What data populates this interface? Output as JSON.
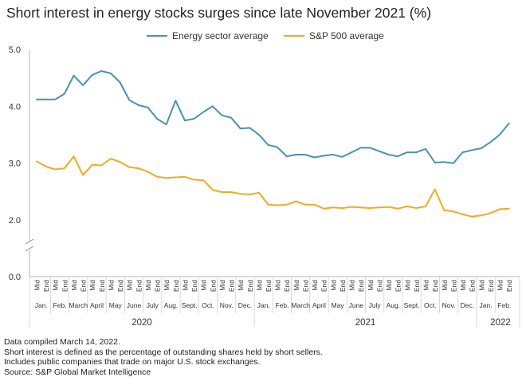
{
  "chart_data": {
    "type": "line",
    "title": "Short interest in energy stocks surges since late November 2021 (%)",
    "ylim": [
      0,
      5
    ],
    "yticks": [
      "0.0",
      "2.0",
      "3.0",
      "4.0",
      "5.0"
    ],
    "axis_break": true,
    "grid": false,
    "legend_position": "top-center",
    "x_labels": [
      "Mid",
      "End",
      "Mid",
      "End",
      "Mid",
      "End",
      "Mid",
      "End",
      "Mid",
      "End",
      "Mid",
      "End",
      "Mid",
      "End",
      "Mid",
      "End",
      "Mid",
      "End",
      "Mid",
      "End",
      "Mid",
      "End",
      "Mid",
      "End",
      "Mid",
      "End",
      "Mid",
      "End",
      "Mid",
      "End",
      "Mid",
      "End",
      "Mid",
      "End",
      "Mid",
      "End",
      "Mid",
      "End",
      "Mid",
      "End",
      "Mid",
      "End",
      "Mid",
      "End",
      "Mid",
      "End",
      "Mid",
      "End",
      "Mid",
      "End",
      "Mid",
      "End"
    ],
    "months": [
      "Jan.",
      "Feb.",
      "March",
      "April",
      "May",
      "June",
      "July",
      "Aug.",
      "Sept.",
      "Oct.",
      "Nov.",
      "Dec.",
      "Jan.",
      "Feb.",
      "March",
      "April",
      "May",
      "June",
      "July",
      "Aug.",
      "Sept.",
      "Oct.",
      "Nov.",
      "Dec.",
      "Jan.",
      "Feb."
    ],
    "years": [
      {
        "label": "2020",
        "start": 0,
        "end": 11
      },
      {
        "label": "2021",
        "start": 12,
        "end": 23
      },
      {
        "label": "2022",
        "start": 24,
        "end": 25
      }
    ],
    "series": [
      {
        "name": "Energy sector average",
        "color": "#4a90b4",
        "values": [
          4.12,
          4.12,
          4.12,
          4.22,
          4.54,
          4.37,
          4.55,
          4.62,
          4.58,
          4.42,
          4.11,
          4.02,
          3.98,
          3.78,
          3.68,
          4.1,
          3.75,
          3.78,
          3.9,
          4.0,
          3.84,
          3.8,
          3.61,
          3.62,
          3.5,
          3.32,
          3.28,
          3.12,
          3.15,
          3.15,
          3.1,
          3.13,
          3.15,
          3.11,
          3.19,
          3.27,
          3.27,
          3.21,
          3.15,
          3.12,
          3.19,
          3.19,
          3.25,
          3.01,
          3.02,
          3.0,
          3.19,
          3.23,
          3.26,
          3.37,
          3.5,
          3.7
        ]
      },
      {
        "name": "S&P 500 average",
        "color": "#f2a924",
        "values": [
          3.03,
          2.94,
          2.89,
          2.91,
          3.12,
          2.79,
          2.97,
          2.96,
          3.08,
          3.02,
          2.93,
          2.91,
          2.85,
          2.76,
          2.74,
          2.75,
          2.76,
          2.71,
          2.7,
          2.53,
          2.49,
          2.49,
          2.46,
          2.45,
          2.48,
          2.27,
          2.26,
          2.27,
          2.33,
          2.27,
          2.27,
          2.2,
          2.22,
          2.21,
          2.23,
          2.22,
          2.21,
          2.22,
          2.23,
          2.2,
          2.24,
          2.21,
          2.24,
          2.54,
          2.17,
          2.15,
          2.1,
          2.06,
          2.08,
          2.12,
          2.19,
          2.2
        ]
      }
    ]
  },
  "footnotes": [
    "Data compiled March 14, 2022.",
    "Short interest is defined as the percentage of outstanding shares held by short sellers.",
    "Includes public companies that trade on major U.S. stock exchanges.",
    "Source: S&P Global Market Intelligence"
  ]
}
